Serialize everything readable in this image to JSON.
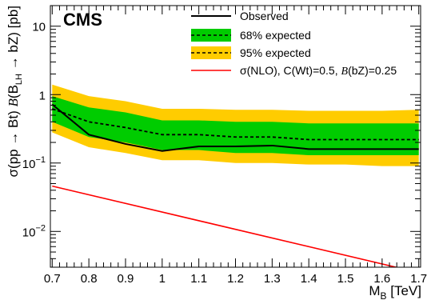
{
  "chart_data": {
    "type": "line",
    "badge": "CMS",
    "xlabel": "M",
    "xlabel_sub": "B",
    "xlabel_unit": "[TeV]",
    "ylabel": {
      "prefix": "σ(pp → Bt) ",
      "italic_b": "B",
      "mid": "(B",
      "sub": "LH",
      "suffix": " → bZ) [pb]"
    },
    "xlim": [
      0.695,
      1.705
    ],
    "ylim": [
      0.003,
      20
    ],
    "yscale": "log",
    "xticks": [
      0.7,
      0.8,
      0.9,
      1.0,
      1.1,
      1.2,
      1.3,
      1.4,
      1.5,
      1.6,
      1.7
    ],
    "xtick_labels": [
      "0.7",
      "0.8",
      "0.9",
      "1",
      "1.1",
      "1.2",
      "1.3",
      "1.4",
      "1.5",
      "1.6",
      "1.7"
    ],
    "yticks": [
      {
        "value": 0.01,
        "base": "10",
        "exp": "−2"
      },
      {
        "value": 0.1,
        "base": "10",
        "exp": "−1"
      },
      {
        "value": 1,
        "base": "1",
        "exp": ""
      },
      {
        "value": 10,
        "base": "10",
        "exp": ""
      }
    ],
    "x": [
      0.7,
      0.8,
      0.9,
      1.0,
      1.1,
      1.2,
      1.3,
      1.4,
      1.5,
      1.6,
      1.7
    ],
    "observed": [
      0.72,
      0.26,
      0.19,
      0.15,
      0.175,
      0.175,
      0.18,
      0.16,
      0.16,
      0.16,
      0.16
    ],
    "expected": [
      0.62,
      0.4,
      0.33,
      0.26,
      0.26,
      0.24,
      0.24,
      0.22,
      0.22,
      0.22,
      0.22
    ],
    "band68": {
      "low": [
        0.4,
        0.24,
        0.2,
        0.155,
        0.155,
        0.14,
        0.14,
        0.13,
        0.13,
        0.13,
        0.13
      ],
      "high": [
        0.95,
        0.65,
        0.55,
        0.42,
        0.42,
        0.4,
        0.4,
        0.38,
        0.38,
        0.38,
        0.38
      ]
    },
    "band95": {
      "low": [
        0.28,
        0.17,
        0.14,
        0.11,
        0.11,
        0.1,
        0.1,
        0.095,
        0.095,
        0.09,
        0.09
      ],
      "high": [
        1.4,
        0.95,
        0.8,
        0.62,
        0.62,
        0.6,
        0.6,
        0.58,
        0.58,
        0.58,
        0.6
      ]
    },
    "theory": {
      "x": [
        0.7,
        1.7
      ],
      "y": [
        0.046,
        0.0025
      ]
    },
    "legend": {
      "position": "top-right",
      "entries": [
        {
          "key": "observed",
          "label": "Observed"
        },
        {
          "key": "band68",
          "label": "68% expected"
        },
        {
          "key": "band95",
          "label": "95% expected"
        },
        {
          "key": "theory",
          "label": "σ(NLO), C(Wt)=0.5, ",
          "label_italic": "B",
          "label_tail": "(bZ)=0.25"
        }
      ]
    },
    "colors": {
      "observed": "#000000",
      "expected": "#000000",
      "band68": "#00cc00",
      "band95": "#ffcc00",
      "theory": "#ff0000"
    }
  }
}
